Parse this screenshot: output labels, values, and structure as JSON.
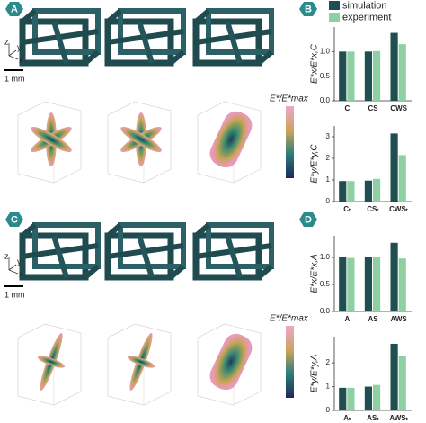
{
  "panels": [
    "A",
    "B",
    "C",
    "D"
  ],
  "scale_label": "1 mm",
  "axis_letters": [
    "z",
    "y",
    "x"
  ],
  "colorbar_label": "E*/E*max",
  "legend": [
    "simulation",
    "experiment"
  ],
  "chart_data": [
    {
      "type": "bar",
      "ylabel": "E*x/E*x,C",
      "categories": [
        "C",
        "CS",
        "CWS"
      ],
      "series": [
        {
          "name": "simulation",
          "color": "#1f4f50",
          "values": [
            1.0,
            1.0,
            1.38
          ]
        },
        {
          "name": "experiment",
          "color": "#8fd0a3",
          "values": [
            1.0,
            1.01,
            1.15
          ]
        }
      ],
      "ylim": [
        0,
        1.5
      ],
      "yticks": [
        {
          "value": 0,
          "label": "0.0"
        },
        {
          "value": 0.5,
          "label": "0.5"
        },
        {
          "value": 1,
          "label": "1.0"
        }
      ]
    },
    {
      "type": "bar",
      "ylabel": "E*y/E*y,C",
      "categories": [
        "Cₜ",
        "CSₜ",
        "CWSₜ"
      ],
      "series": [
        {
          "name": "simulation",
          "color": "#1f4f50",
          "values": [
            0.95,
            0.97,
            3.15
          ]
        },
        {
          "name": "experiment",
          "color": "#8fd0a3",
          "values": [
            0.95,
            1.05,
            2.15
          ]
        }
      ],
      "ylim": [
        0,
        3.5
      ],
      "yticks": [
        0,
        1,
        2,
        3
      ]
    },
    {
      "type": "bar",
      "ylabel": "E*x/E*x,A",
      "categories": [
        "A",
        "AS",
        "AWS"
      ],
      "series": [
        {
          "name": "simulation",
          "color": "#1f4f50",
          "values": [
            1.0,
            1.0,
            1.27
          ]
        },
        {
          "name": "experiment",
          "color": "#8fd0a3",
          "values": [
            0.99,
            1.0,
            0.98
          ]
        }
      ],
      "ylim": [
        0,
        1.4
      ],
      "yticks": [
        {
          "value": 0,
          "label": "0.0"
        },
        {
          "value": 0.5,
          "label": "0.5"
        },
        {
          "value": 1,
          "label": "1.0"
        }
      ]
    },
    {
      "type": "bar",
      "ylabel": "E*y/E*y,A",
      "categories": [
        "Aₜ",
        "ASₜ",
        "AWSₜ"
      ],
      "series": [
        {
          "name": "simulation",
          "color": "#1f4f50",
          "values": [
            0.95,
            1.0,
            2.8
          ]
        },
        {
          "name": "experiment",
          "color": "#8fd0a3",
          "values": [
            0.95,
            1.07,
            2.27
          ]
        }
      ],
      "ylim": [
        0,
        3.1
      ],
      "yticks": [
        0,
        1,
        2
      ]
    }
  ]
}
